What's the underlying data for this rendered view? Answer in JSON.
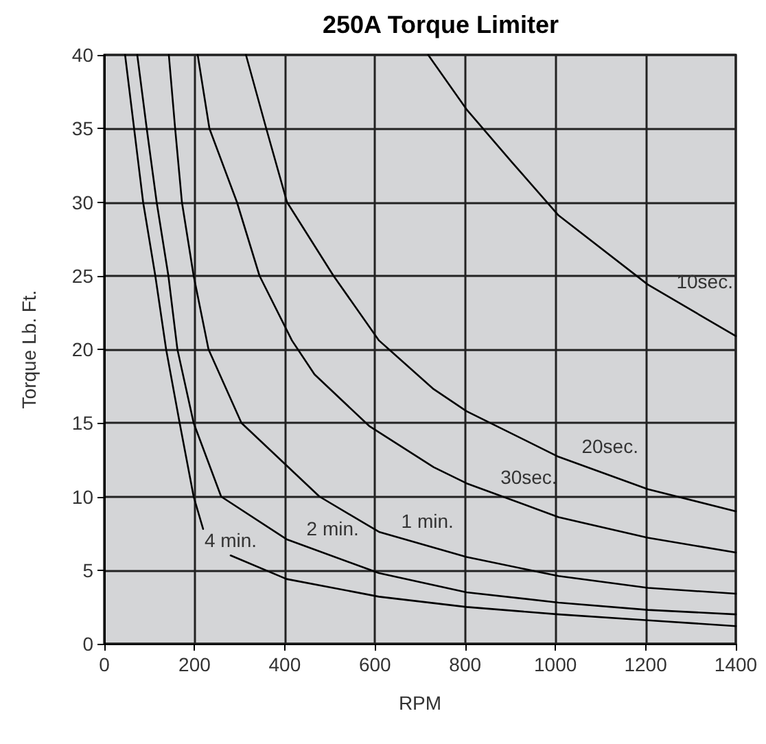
{
  "chart_data": {
    "type": "line",
    "title": "250A Torque Limiter",
    "xlabel": "RPM",
    "ylabel": "Torque Lb. Ft.",
    "xlim": [
      0,
      1400
    ],
    "xticks": [
      0,
      200,
      400,
      600,
      800,
      1000,
      1200,
      1400
    ],
    "ylim": [
      0,
      40
    ],
    "yticks": [
      0,
      5,
      10,
      15,
      20,
      25,
      30,
      35,
      40
    ],
    "grid": true,
    "marker": "none",
    "line_style": "solid",
    "series": [
      {
        "color": "#000000",
        "x": [
          46,
          66,
          86,
          113,
          137,
          167,
          198,
          219,
          250,
          280,
          404,
          609,
          803,
          1007,
          1205,
          1400
        ],
        "values": [
          40,
          35,
          30,
          25,
          20,
          15,
          10,
          7.8,
          null,
          6.0,
          4.4,
          3.2,
          2.5,
          2.0,
          1.6,
          1.2
        ]
      },
      {
        "color": "#000000",
        "x": [
          73,
          94,
          116,
          142,
          162,
          198,
          259,
          404,
          609,
          803,
          1007,
          1205,
          1400
        ],
        "values": [
          40,
          35,
          30,
          25,
          20,
          15,
          10,
          7.1,
          4.8,
          3.5,
          2.8,
          2.3,
          2.0
        ]
      },
      {
        "color": "#000000",
        "x": [
          143,
          157,
          172,
          198,
          231,
          304,
          477,
          609,
          803,
          1007,
          1205,
          1400
        ],
        "values": [
          40,
          35,
          30,
          25,
          20,
          15,
          10,
          7.6,
          5.9,
          4.6,
          3.8,
          3.4
        ]
      },
      {
        "color": "#000000",
        "x": [
          207,
          233,
          294,
          344,
          416,
          466,
          587,
          730,
          803,
          1007,
          1205,
          1400
        ],
        "values": [
          40,
          35,
          30,
          25,
          20.6,
          18.3,
          14.8,
          12.0,
          10.9,
          8.6,
          7.2,
          6.2
        ]
      },
      {
        "color": "#000000",
        "x": [
          314,
          359,
          405,
          508,
          609,
          730,
          803,
          1007,
          1205,
          1400
        ],
        "values": [
          40,
          35,
          30,
          25,
          20.6,
          17.3,
          15.8,
          12.7,
          10.5,
          9.0
        ]
      },
      {
        "color": "#000000",
        "x": [
          718,
          803,
          904,
          1007,
          1205,
          1400
        ],
        "values": [
          40,
          36.3,
          32.7,
          29.1,
          24.4,
          20.9
        ]
      }
    ],
    "annotations": [
      {
        "text": "10sec.",
        "x": 1250,
        "y": 23.6
      },
      {
        "text": "20sec.",
        "x": 1040,
        "y": 12.4
      },
      {
        "text": "30sec.",
        "x": 860,
        "y": 10.3
      },
      {
        "text": "1 min.",
        "x": 640,
        "y": 7.3
      },
      {
        "text": "2 min.",
        "x": 430,
        "y": 6.8
      },
      {
        "text": "4 min.",
        "x": 280,
        "y": 6.0
      }
    ]
  }
}
